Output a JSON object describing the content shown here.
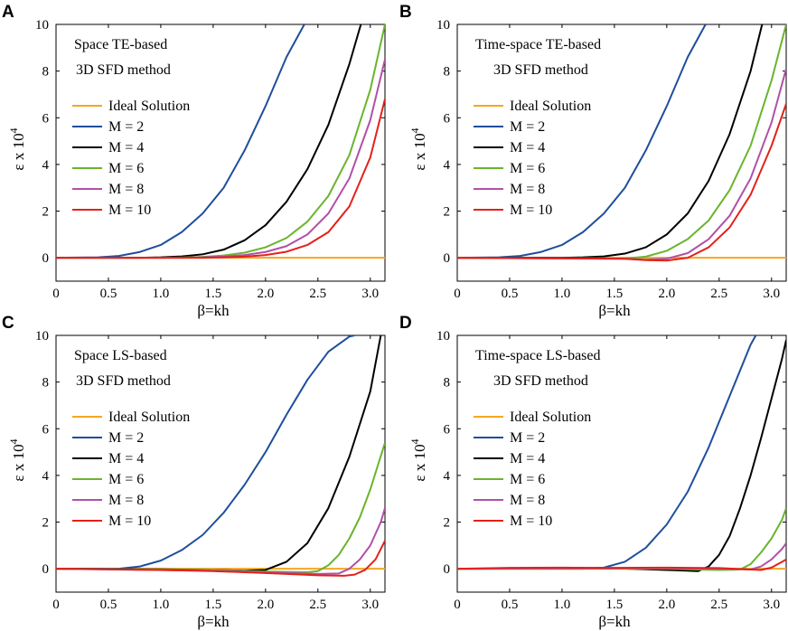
{
  "figure": {
    "legend_entries": [
      "Ideal Solution",
      "M = 2",
      "M = 4",
      "M = 6",
      "M = 8",
      "M = 10"
    ]
  },
  "chart_data": [
    {
      "panel": "A",
      "type": "line",
      "title_lines": [
        "Space TE-based",
        "3D SFD method"
      ],
      "xlabel": "β=kh",
      "ylabel_main": "ε x 10",
      "ylabel_exp": "4",
      "xlim": [
        0,
        3.14
      ],
      "ylim": [
        -1,
        10
      ],
      "xticks": [
        "0",
        "0.5",
        "1.0",
        "1.5",
        "2.0",
        "2.5",
        "3.0"
      ],
      "yticks": [
        "0",
        "2",
        "4",
        "6",
        "8",
        "10"
      ],
      "legend_position": "upper-left",
      "series": [
        {
          "name": "Ideal Solution",
          "color": "#f5a623",
          "x": [
            0,
            3.14
          ],
          "y": [
            0,
            0
          ]
        },
        {
          "name": "M = 2",
          "color": "#1f4e9c",
          "x": [
            0,
            0.4,
            0.6,
            0.8,
            1.0,
            1.2,
            1.4,
            1.6,
            1.8,
            2.0,
            2.2,
            2.37
          ],
          "y": [
            0,
            0.02,
            0.08,
            0.25,
            0.55,
            1.1,
            1.9,
            3.0,
            4.6,
            6.5,
            8.6,
            10
          ]
        },
        {
          "name": "M = 4",
          "color": "#000000",
          "x": [
            0,
            0.8,
            1.0,
            1.2,
            1.4,
            1.6,
            1.8,
            2.0,
            2.2,
            2.4,
            2.6,
            2.8,
            2.91
          ],
          "y": [
            0,
            0,
            0.02,
            0.06,
            0.15,
            0.35,
            0.75,
            1.4,
            2.4,
            3.8,
            5.7,
            8.3,
            10
          ]
        },
        {
          "name": "M = 6",
          "color": "#6ab42d",
          "x": [
            0,
            1.0,
            1.2,
            1.4,
            1.6,
            1.8,
            2.0,
            2.2,
            2.4,
            2.6,
            2.8,
            3.0,
            3.14
          ],
          "y": [
            0,
            0,
            0.01,
            0.04,
            0.1,
            0.22,
            0.45,
            0.85,
            1.55,
            2.65,
            4.4,
            7.2,
            10
          ]
        },
        {
          "name": "M = 8",
          "color": "#b150a8",
          "x": [
            0,
            1.2,
            1.4,
            1.6,
            1.8,
            2.0,
            2.2,
            2.4,
            2.6,
            2.8,
            3.0,
            3.14
          ],
          "y": [
            0,
            0,
            0.02,
            0.05,
            0.12,
            0.25,
            0.5,
            1.0,
            1.9,
            3.4,
            5.9,
            8.5
          ]
        },
        {
          "name": "M = 10",
          "color": "#e32119",
          "x": [
            0,
            1.4,
            1.6,
            1.8,
            2.0,
            2.2,
            2.4,
            2.6,
            2.8,
            3.0,
            3.14
          ],
          "y": [
            0,
            0,
            0.02,
            0.05,
            0.12,
            0.26,
            0.55,
            1.1,
            2.2,
            4.3,
            6.8
          ]
        }
      ]
    },
    {
      "panel": "B",
      "type": "line",
      "title_lines": [
        "Time-space TE-based",
        "3D SFD method"
      ],
      "xlabel": "β=kh",
      "ylabel_main": "ε x 10",
      "ylabel_exp": "4",
      "xlim": [
        0,
        3.14
      ],
      "ylim": [
        -1,
        10
      ],
      "xticks": [
        "0",
        "0.5",
        "1.0",
        "1.5",
        "2.0",
        "2.5",
        "3.0"
      ],
      "yticks": [
        "0",
        "2",
        "4",
        "6",
        "8",
        "10"
      ],
      "legend_position": "upper-left",
      "series": [
        {
          "name": "Ideal Solution",
          "color": "#f5a623",
          "x": [
            0,
            3.14
          ],
          "y": [
            0,
            0
          ]
        },
        {
          "name": "M = 2",
          "color": "#1f4e9c",
          "x": [
            0,
            0.4,
            0.6,
            0.8,
            1.0,
            1.2,
            1.4,
            1.6,
            1.8,
            2.0,
            2.2,
            2.37
          ],
          "y": [
            0,
            0.02,
            0.08,
            0.25,
            0.55,
            1.1,
            1.9,
            3.0,
            4.6,
            6.5,
            8.6,
            10
          ]
        },
        {
          "name": "M = 4",
          "color": "#000000",
          "x": [
            0,
            1.0,
            1.2,
            1.4,
            1.6,
            1.8,
            2.0,
            2.2,
            2.4,
            2.6,
            2.8,
            2.91
          ],
          "y": [
            0,
            0,
            0.02,
            0.06,
            0.18,
            0.45,
            1.0,
            1.9,
            3.3,
            5.3,
            8.0,
            10
          ]
        },
        {
          "name": "M = 6",
          "color": "#6ab42d",
          "x": [
            0,
            1.4,
            1.6,
            1.8,
            2.0,
            2.2,
            2.4,
            2.6,
            2.8,
            3.0,
            3.14
          ],
          "y": [
            0,
            -0.02,
            -0.03,
            0.05,
            0.3,
            0.8,
            1.6,
            2.9,
            4.8,
            7.6,
            10
          ]
        },
        {
          "name": "M = 8",
          "color": "#b150a8",
          "x": [
            0,
            1.6,
            1.8,
            2.0,
            2.2,
            2.4,
            2.6,
            2.8,
            3.0,
            3.14
          ],
          "y": [
            0,
            -0.04,
            -0.08,
            -0.04,
            0.2,
            0.8,
            1.8,
            3.4,
            5.8,
            8.1
          ]
        },
        {
          "name": "M = 10",
          "color": "#e32119",
          "x": [
            0,
            1.6,
            1.8,
            2.0,
            2.2,
            2.4,
            2.6,
            2.8,
            3.0,
            3.14
          ],
          "y": [
            0,
            -0.04,
            -0.1,
            -0.12,
            0.0,
            0.45,
            1.3,
            2.7,
            4.8,
            6.6
          ]
        }
      ]
    },
    {
      "panel": "C",
      "type": "line",
      "title_lines": [
        "Space LS-based",
        "3D SFD method"
      ],
      "xlabel": "β=kh",
      "ylabel_main": "ε x 10",
      "ylabel_exp": "4",
      "xlim": [
        0,
        3.14
      ],
      "ylim": [
        -1,
        10
      ],
      "xticks": [
        "0",
        "0.5",
        "1.0",
        "1.5",
        "2.0",
        "2.5",
        "3.0"
      ],
      "yticks": [
        "0",
        "2",
        "4",
        "6",
        "8",
        "10"
      ],
      "legend_position": "upper-left",
      "series": [
        {
          "name": "Ideal Solution",
          "color": "#f5a623",
          "x": [
            0,
            3.14
          ],
          "y": [
            0,
            0
          ]
        },
        {
          "name": "M = 2",
          "color": "#1f4e9c",
          "x": [
            0,
            0.6,
            0.8,
            1.0,
            1.2,
            1.4,
            1.6,
            1.8,
            2.0,
            2.2,
            2.4,
            2.6,
            2.8,
            2.85
          ],
          "y": [
            0,
            0,
            0.1,
            0.35,
            0.8,
            1.45,
            2.4,
            3.6,
            5.0,
            6.6,
            8.1,
            9.3,
            9.95,
            10
          ]
        },
        {
          "name": "M = 4",
          "color": "#000000",
          "x": [
            0,
            1.0,
            1.5,
            1.8,
            2.0,
            2.2,
            2.4,
            2.6,
            2.8,
            3.0,
            3.1
          ],
          "y": [
            0,
            -0.02,
            -0.05,
            -0.08,
            -0.05,
            0.3,
            1.1,
            2.6,
            4.8,
            7.6,
            10
          ]
        },
        {
          "name": "M = 6",
          "color": "#6ab42d",
          "x": [
            0,
            1.5,
            2.0,
            2.4,
            2.5,
            2.6,
            2.7,
            2.8,
            2.9,
            3.0,
            3.14
          ],
          "y": [
            0,
            -0.05,
            -0.12,
            -0.15,
            -0.1,
            0.15,
            0.6,
            1.3,
            2.2,
            3.4,
            5.4
          ]
        },
        {
          "name": "M = 8",
          "color": "#b150a8",
          "x": [
            0,
            1.5,
            2.0,
            2.5,
            2.7,
            2.8,
            2.9,
            3.0,
            3.1,
            3.14
          ],
          "y": [
            0,
            -0.08,
            -0.15,
            -0.22,
            -0.2,
            0.0,
            0.4,
            1.0,
            2.0,
            2.6
          ]
        },
        {
          "name": "M = 10",
          "color": "#e32119",
          "x": [
            0,
            1.0,
            1.5,
            2.0,
            2.5,
            2.75,
            2.85,
            2.95,
            3.05,
            3.14
          ],
          "y": [
            0,
            -0.05,
            -0.1,
            -0.18,
            -0.28,
            -0.3,
            -0.25,
            -0.05,
            0.4,
            1.2
          ]
        }
      ]
    },
    {
      "panel": "D",
      "type": "line",
      "title_lines": [
        "Time-space LS-based",
        "3D SFD method"
      ],
      "xlabel": "β=kh",
      "ylabel_main": "ε x 10",
      "ylabel_exp": "4",
      "xlim": [
        0,
        3.14
      ],
      "ylim": [
        -1,
        10
      ],
      "xticks": [
        "0",
        "0.5",
        "1.0",
        "1.5",
        "2.0",
        "2.5",
        "3.0"
      ],
      "yticks": [
        "0",
        "2",
        "4",
        "6",
        "8",
        "10"
      ],
      "legend_position": "upper-left",
      "series": [
        {
          "name": "Ideal Solution",
          "color": "#f5a623",
          "x": [
            0,
            3.14
          ],
          "y": [
            0,
            0
          ]
        },
        {
          "name": "M = 2",
          "color": "#1f4e9c",
          "x": [
            0,
            1.2,
            1.4,
            1.6,
            1.8,
            2.0,
            2.2,
            2.4,
            2.6,
            2.8,
            2.85
          ],
          "y": [
            0,
            0,
            0.05,
            0.3,
            0.9,
            1.9,
            3.3,
            5.2,
            7.4,
            9.6,
            10
          ]
        },
        {
          "name": "M = 4",
          "color": "#000000",
          "x": [
            0,
            1.5,
            2.0,
            2.3,
            2.4,
            2.5,
            2.6,
            2.7,
            2.8,
            2.9,
            3.0,
            3.1,
            3.14
          ],
          "y": [
            0,
            0.02,
            -0.05,
            -0.1,
            0.1,
            0.6,
            1.4,
            2.6,
            4.0,
            5.6,
            7.3,
            9.0,
            9.8
          ]
        },
        {
          "name": "M = 6",
          "color": "#6ab42d",
          "x": [
            0,
            2.0,
            2.5,
            2.7,
            2.8,
            2.9,
            3.0,
            3.1,
            3.14
          ],
          "y": [
            0,
            0,
            -0.05,
            -0.03,
            0.2,
            0.7,
            1.3,
            2.1,
            2.6
          ]
        },
        {
          "name": "M = 8",
          "color": "#b150a8",
          "x": [
            0,
            2.0,
            2.5,
            2.8,
            2.9,
            3.0,
            3.1,
            3.14
          ],
          "y": [
            0,
            0.02,
            0.0,
            -0.03,
            0.1,
            0.4,
            0.85,
            1.1
          ]
        },
        {
          "name": "M = 10",
          "color": "#e32119",
          "x": [
            0,
            0.5,
            1.0,
            1.5,
            2.0,
            2.5,
            2.9,
            3.0,
            3.1,
            3.14
          ],
          "y": [
            0,
            0.04,
            0.05,
            0.04,
            0.05,
            0.03,
            -0.05,
            0.05,
            0.3,
            0.4
          ]
        }
      ]
    }
  ]
}
